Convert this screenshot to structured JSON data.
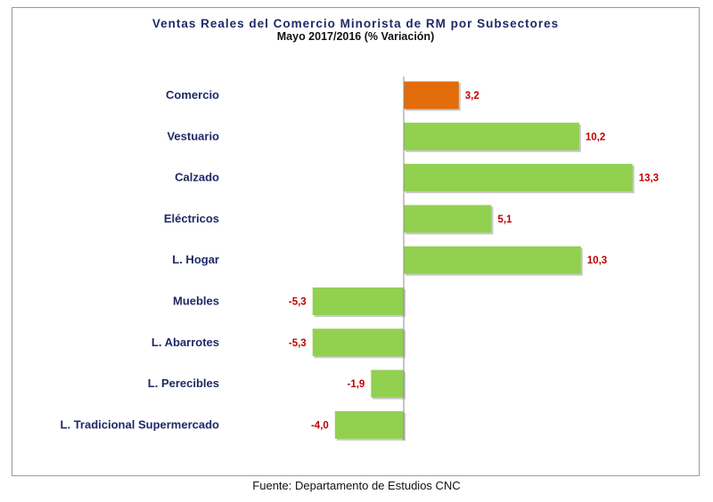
{
  "chart_data": {
    "type": "bar",
    "orientation": "horizontal",
    "title": "Ventas Reales del Comercio Minorista de RM por Subsectores",
    "subtitle": "Mayo 2017/2016 (% Variación)",
    "categories": [
      "Comercio",
      "Vestuario",
      "Calzado",
      "Eléctricos",
      "L. Hogar",
      "Muebles",
      "L. Abarrotes",
      "L. Perecibles",
      "L. Tradicional Supermercado"
    ],
    "values": [
      3.2,
      10.2,
      13.3,
      5.1,
      10.3,
      -5.3,
      -5.3,
      -1.9,
      -4.0
    ],
    "value_labels": [
      "3,2",
      "10,2",
      "13,3",
      "5,1",
      "10,3",
      "-5,3",
      "-5,3",
      "-1,9",
      "-4,0"
    ],
    "bar_colors": [
      "#e36c0a",
      "#92d050",
      "#92d050",
      "#92d050",
      "#92d050",
      "#92d050",
      "#92d050",
      "#92d050",
      "#92d050"
    ],
    "label_color": "#c00000",
    "category_label_color": "#1f2a66",
    "xlim": [
      -5.3,
      13.3
    ],
    "grid": false,
    "legend": "none"
  },
  "source": "Fuente: Departamento de Estudios CNC"
}
